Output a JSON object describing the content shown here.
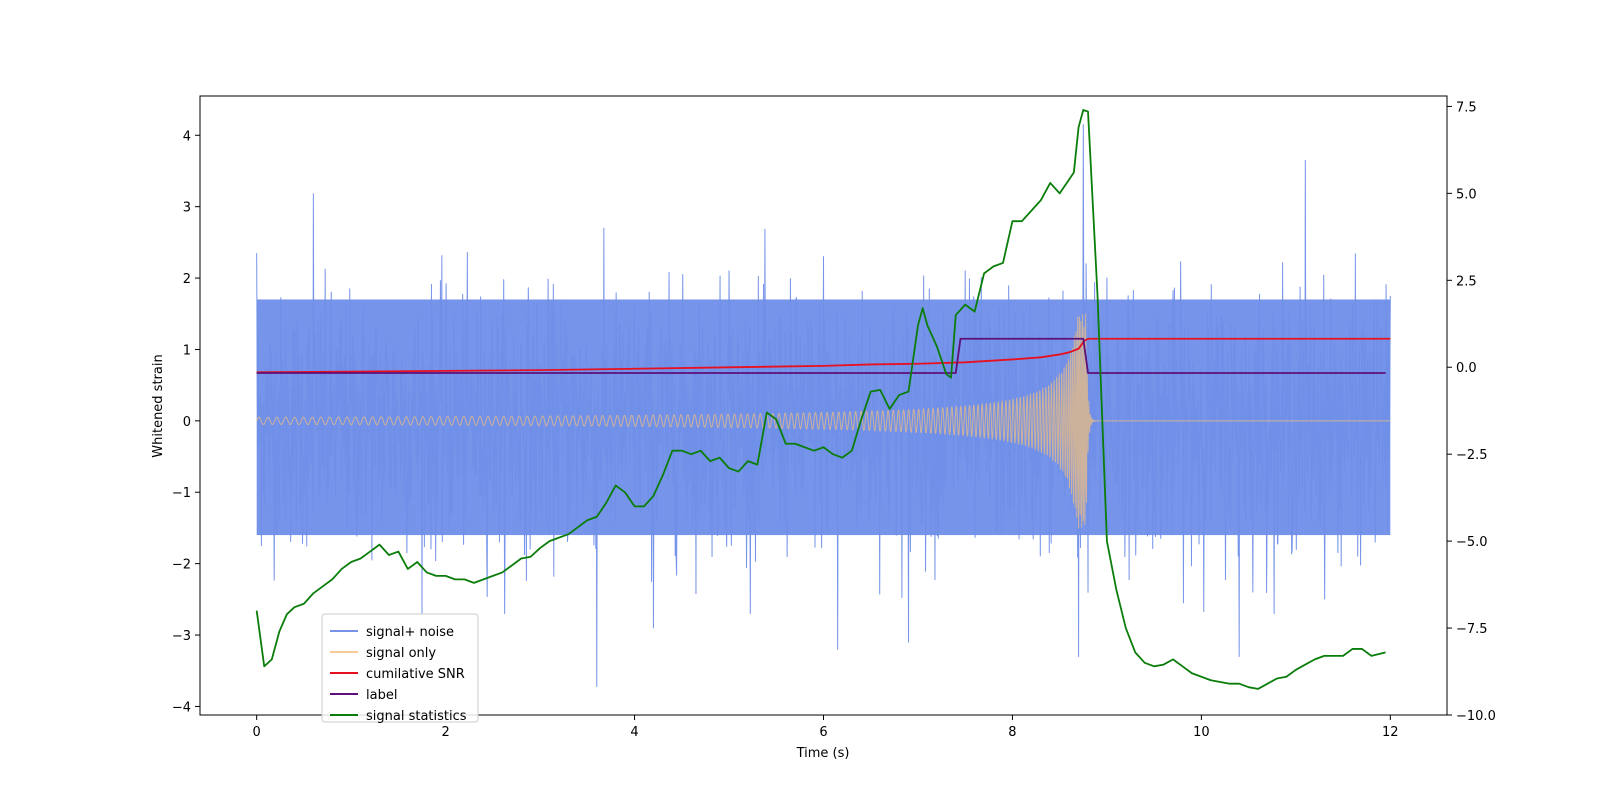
{
  "chart_data": {
    "type": "line",
    "xlabel": "Time (s)",
    "ylabel": "Whitened strain",
    "xlim": [
      -0.6,
      12.6
    ],
    "ylim": [
      -4.12,
      4.55
    ],
    "y2lim": [
      -10.0,
      7.8
    ],
    "xticks": [
      0,
      2,
      4,
      6,
      8,
      10,
      12
    ],
    "yticks": [
      -4,
      -3,
      -2,
      -1,
      0,
      1,
      2,
      3,
      4
    ],
    "y2ticks": [
      -10.0,
      -7.5,
      -5.0,
      -2.5,
      0.0,
      2.5,
      5.0,
      7.5
    ],
    "xtick_labels": [
      "0",
      "2",
      "4",
      "6",
      "8",
      "10",
      "12"
    ],
    "ytick_labels": [
      "−4",
      "−3",
      "−2",
      "−1",
      "0",
      "1",
      "2",
      "3",
      "4"
    ],
    "y2tick_labels": [
      "−10.0",
      "−7.5",
      "−5.0",
      "−2.5",
      "0.0",
      "2.5",
      "5.0",
      "7.5"
    ],
    "legend_position": "lower-left",
    "colors": {
      "signal_noise": "#6f8ee8",
      "signal_only": "#f5c07a",
      "cumulative_snr": "#e8101e",
      "label": "#5e0f78",
      "signal_statistics": "#0a7d0a"
    },
    "series": [
      {
        "name": "signal+ noise",
        "axis": "left",
        "description_points": {
          "x": [
            0,
            0.6,
            3.6,
            4.2,
            5.0,
            6.0,
            6.15,
            6.9,
            7.5,
            8.7,
            8.75,
            8.78,
            8.8,
            9.0,
            10.4,
            11.1,
            12.0
          ],
          "y": [
            2.35,
            3.18,
            -3.72,
            -2.9,
            2.1,
            2.3,
            -3.2,
            -3.1,
            2.1,
            -3.3,
            4.15,
            2.2,
            -2.4,
            2.0,
            -3.3,
            3.65,
            1.75
          ]
        },
        "noise_band": {
          "x": [
            0,
            12
          ],
          "ymin": -1.6,
          "ymax": 1.7
        }
      },
      {
        "name": "signal only",
        "axis": "left",
        "chirp": {
          "x_start": 0,
          "x_merger": 8.78,
          "x_end": 12.0,
          "amp_start": 0.05,
          "amp_peak": 1.5,
          "freq_start_hz": 10.5,
          "freq_merger_hz": 60
        }
      },
      {
        "name": "cumilative SNR",
        "axis": "left",
        "x": [
          0,
          1,
          2,
          3,
          4,
          5,
          6,
          6.5,
          7,
          7.5,
          8,
          8.3,
          8.5,
          8.6,
          8.7,
          8.76,
          8.8,
          9,
          10,
          11,
          12
        ],
        "values": [
          0.68,
          0.69,
          0.7,
          0.71,
          0.73,
          0.75,
          0.77,
          0.79,
          0.8,
          0.82,
          0.86,
          0.89,
          0.93,
          0.96,
          1.01,
          1.12,
          1.15,
          1.15,
          1.15,
          1.15,
          1.15
        ]
      },
      {
        "name": "label",
        "axis": "left",
        "x": [
          0,
          7.4,
          7.45,
          8.75,
          8.8,
          11.95
        ],
        "values": [
          0.67,
          0.67,
          1.15,
          1.15,
          0.67,
          0.67
        ]
      },
      {
        "name": "signal statistics",
        "axis": "right",
        "x": [
          0,
          0.08,
          0.16,
          0.24,
          0.32,
          0.4,
          0.5,
          0.6,
          0.7,
          0.8,
          0.9,
          1.0,
          1.1,
          1.2,
          1.3,
          1.4,
          1.5,
          1.6,
          1.7,
          1.8,
          1.9,
          2.0,
          2.1,
          2.2,
          2.3,
          2.4,
          2.5,
          2.6,
          2.7,
          2.8,
          2.9,
          3.0,
          3.1,
          3.2,
          3.3,
          3.4,
          3.5,
          3.6,
          3.7,
          3.8,
          3.9,
          4.0,
          4.1,
          4.2,
          4.3,
          4.4,
          4.5,
          4.6,
          4.7,
          4.8,
          4.9,
          5.0,
          5.1,
          5.2,
          5.3,
          5.4,
          5.5,
          5.6,
          5.7,
          5.8,
          5.9,
          6.0,
          6.1,
          6.2,
          6.3,
          6.4,
          6.5,
          6.6,
          6.7,
          6.8,
          6.9,
          7.0,
          7.05,
          7.1,
          7.2,
          7.3,
          7.35,
          7.4,
          7.5,
          7.6,
          7.7,
          7.8,
          7.9,
          8.0,
          8.1,
          8.2,
          8.3,
          8.4,
          8.5,
          8.6,
          8.65,
          8.7,
          8.75,
          8.8,
          8.9,
          9.0,
          9.1,
          9.2,
          9.3,
          9.4,
          9.5,
          9.6,
          9.7,
          9.8,
          9.9,
          10.0,
          10.1,
          10.2,
          10.3,
          10.4,
          10.5,
          10.6,
          10.7,
          10.8,
          10.9,
          11.0,
          11.1,
          11.2,
          11.3,
          11.4,
          11.5,
          11.6,
          11.7,
          11.8,
          11.95
        ],
        "values": [
          -7.0,
          -8.6,
          -8.4,
          -7.6,
          -7.1,
          -6.9,
          -6.8,
          -6.5,
          -6.3,
          -6.1,
          -5.8,
          -5.6,
          -5.5,
          -5.3,
          -5.1,
          -5.4,
          -5.3,
          -5.8,
          -5.6,
          -5.9,
          -6.0,
          -6.0,
          -6.1,
          -6.1,
          -6.2,
          -6.1,
          -6.0,
          -5.9,
          -5.7,
          -5.5,
          -5.45,
          -5.2,
          -5.0,
          -4.9,
          -4.8,
          -4.6,
          -4.4,
          -4.3,
          -3.9,
          -3.4,
          -3.6,
          -4.0,
          -4.0,
          -3.7,
          -3.1,
          -2.4,
          -2.4,
          -2.5,
          -2.4,
          -2.7,
          -2.6,
          -2.9,
          -3.0,
          -2.7,
          -2.8,
          -1.3,
          -1.5,
          -2.2,
          -2.2,
          -2.3,
          -2.4,
          -2.3,
          -2.5,
          -2.6,
          -2.4,
          -1.5,
          -0.7,
          -0.65,
          -1.2,
          -0.8,
          -0.7,
          1.2,
          1.7,
          1.2,
          0.6,
          -0.2,
          -0.3,
          1.5,
          1.8,
          1.6,
          2.7,
          2.9,
          3.0,
          4.2,
          4.2,
          4.5,
          4.8,
          5.3,
          5.0,
          5.4,
          5.6,
          6.9,
          7.4,
          7.35,
          2.1,
          -5.0,
          -6.4,
          -7.5,
          -8.2,
          -8.5,
          -8.6,
          -8.55,
          -8.4,
          -8.6,
          -8.8,
          -8.9,
          -9.0,
          -9.05,
          -9.1,
          -9.1,
          -9.2,
          -9.25,
          -9.1,
          -8.95,
          -8.9,
          -8.7,
          -8.55,
          -8.4,
          -8.3,
          -8.3,
          -8.3,
          -8.1,
          -8.1,
          -8.3,
          -8.2
        ]
      }
    ]
  }
}
